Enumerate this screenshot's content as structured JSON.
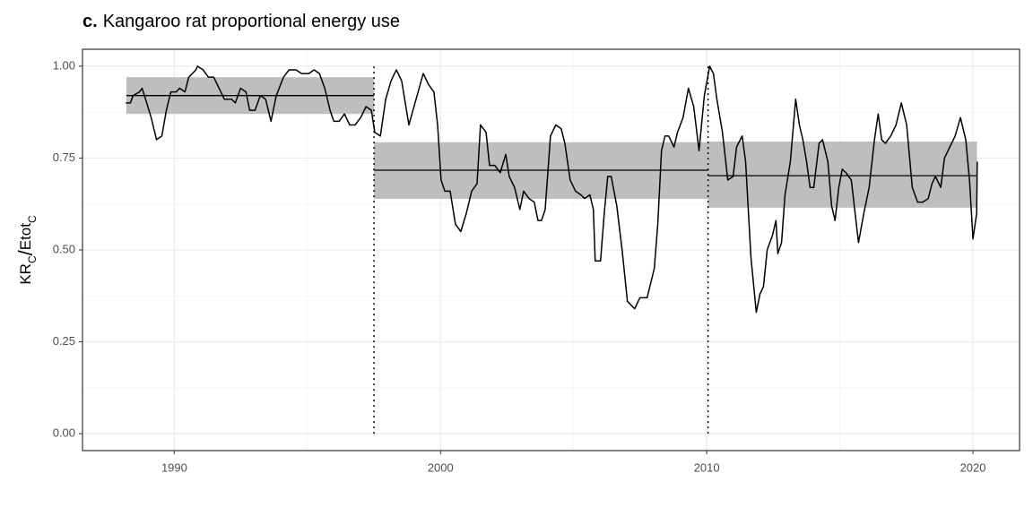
{
  "chart_data": {
    "type": "line",
    "title_label": "c.",
    "title": "Kangaroo rat proportional energy use",
    "y_label": {
      "text1": "KR",
      "sub1": "C",
      "slash": "/",
      "text2": "Etot",
      "sub2": "C"
    },
    "xlim": [
      1986.55,
      2021.75
    ],
    "ylim": [
      -0.046,
      1.046
    ],
    "xticks": [
      1990,
      2000,
      2010,
      2020
    ],
    "minor_xticks": [
      1995,
      2005,
      2015
    ],
    "yticks": [
      {
        "value": 0,
        "label": "0.00"
      },
      {
        "value": 0.25,
        "label": "0.25"
      },
      {
        "value": 0.5,
        "label": "0.50"
      },
      {
        "value": 0.75,
        "label": "0.75"
      },
      {
        "value": 1,
        "label": "1.00"
      }
    ],
    "minor_yticks": [
      0.125,
      0.375,
      0.625,
      0.875
    ],
    "grid": true,
    "band_color": "#bebebe",
    "changepoints": [
      1997.5,
      2010.05
    ],
    "segments": [
      {
        "start": 1988.2,
        "end": 1997.5,
        "mean": 0.92,
        "lower": 0.87,
        "upper": 0.97
      },
      {
        "start": 1997.5,
        "end": 2010.05,
        "mean": 0.717,
        "lower": 0.639,
        "upper": 0.793
      },
      {
        "start": 2010.05,
        "end": 2020.15,
        "mean": 0.702,
        "lower": 0.615,
        "upper": 0.795
      }
    ],
    "series": [
      {
        "color": "#000000",
        "x": [
          1988.18,
          1988.35,
          1988.45,
          1988.69,
          1988.79,
          1988.92,
          1989.13,
          1989.33,
          1989.53,
          1989.7,
          1989.87,
          1990.07,
          1990.2,
          1990.4,
          1990.54,
          1990.81,
          1990.87,
          1991.08,
          1991.28,
          1991.48,
          1991.68,
          1991.88,
          1992.15,
          1992.29,
          1992.49,
          1992.69,
          1992.83,
          1993.03,
          1993.23,
          1993.43,
          1993.63,
          1993.83,
          1994.1,
          1994.31,
          1994.57,
          1994.78,
          1995.05,
          1995.25,
          1995.45,
          1995.65,
          1995.85,
          1995.99,
          1996.19,
          1996.39,
          1996.59,
          1996.79,
          1997.0,
          1997.2,
          1997.4,
          1997.53,
          1997.74,
          1997.94,
          1998.14,
          1998.34,
          1998.54,
          1998.81,
          1999.08,
          1999.35,
          1999.55,
          1999.75,
          1999.89,
          2000.02,
          2000.16,
          2000.36,
          2000.56,
          2000.76,
          2000.97,
          2001.17,
          2001.37,
          2001.5,
          2001.71,
          2001.84,
          2002.04,
          2002.24,
          2002.45,
          2002.58,
          2002.78,
          2002.98,
          2003.12,
          2003.32,
          2003.52,
          2003.66,
          2003.79,
          2003.93,
          2004.13,
          2004.33,
          2004.53,
          2004.67,
          2004.87,
          2005.07,
          2005.27,
          2005.41,
          2005.61,
          2005.74,
          2005.81,
          2006.01,
          2006.15,
          2006.28,
          2006.41,
          2006.62,
          2006.82,
          2007.02,
          2007.29,
          2007.49,
          2007.76,
          2008.03,
          2008.16,
          2008.3,
          2008.43,
          2008.57,
          2008.77,
          2008.9,
          2009.11,
          2009.31,
          2009.51,
          2009.71,
          2009.91,
          2010.11,
          2010.25,
          2010.38,
          2010.59,
          2010.79,
          2010.99,
          2011.12,
          2011.33,
          2011.46,
          2011.66,
          2011.86,
          2012.0,
          2012.13,
          2012.27,
          2012.47,
          2012.6,
          2012.67,
          2012.81,
          2012.94,
          2013.14,
          2013.34,
          2013.48,
          2013.61,
          2013.75,
          2013.88,
          2014.02,
          2014.22,
          2014.35,
          2014.55,
          2014.69,
          2014.82,
          2014.96,
          2015.09,
          2015.23,
          2015.43,
          2015.7,
          2015.9,
          2016.1,
          2016.3,
          2016.44,
          2016.57,
          2016.71,
          2016.91,
          2017.11,
          2017.31,
          2017.51,
          2017.72,
          2017.92,
          2018.12,
          2018.32,
          2018.46,
          2018.59,
          2018.79,
          2018.93,
          2019.13,
          2019.33,
          2019.53,
          2019.73,
          2019.87,
          2020.0,
          2020.14,
          2020.16
        ],
        "values": [
          0.9,
          0.9,
          0.92,
          0.93,
          0.94,
          0.91,
          0.86,
          0.8,
          0.81,
          0.88,
          0.93,
          0.93,
          0.94,
          0.93,
          0.97,
          0.99,
          1.0,
          0.99,
          0.97,
          0.97,
          0.94,
          0.91,
          0.91,
          0.9,
          0.94,
          0.93,
          0.88,
          0.88,
          0.92,
          0.91,
          0.85,
          0.92,
          0.97,
          0.99,
          0.99,
          0.98,
          0.98,
          0.99,
          0.98,
          0.94,
          0.88,
          0.85,
          0.85,
          0.87,
          0.84,
          0.84,
          0.86,
          0.89,
          0.88,
          0.82,
          0.81,
          0.91,
          0.96,
          0.99,
          0.96,
          0.84,
          0.91,
          0.98,
          0.95,
          0.93,
          0.84,
          0.69,
          0.66,
          0.66,
          0.57,
          0.55,
          0.6,
          0.66,
          0.68,
          0.84,
          0.82,
          0.73,
          0.73,
          0.71,
          0.76,
          0.7,
          0.67,
          0.61,
          0.66,
          0.64,
          0.63,
          0.58,
          0.58,
          0.61,
          0.81,
          0.84,
          0.83,
          0.79,
          0.69,
          0.66,
          0.65,
          0.64,
          0.65,
          0.61,
          0.47,
          0.47,
          0.6,
          0.7,
          0.7,
          0.62,
          0.5,
          0.36,
          0.34,
          0.37,
          0.37,
          0.45,
          0.57,
          0.77,
          0.81,
          0.81,
          0.78,
          0.82,
          0.86,
          0.94,
          0.89,
          0.77,
          0.92,
          1.0,
          0.98,
          0.91,
          0.82,
          0.69,
          0.7,
          0.78,
          0.81,
          0.74,
          0.48,
          0.33,
          0.38,
          0.4,
          0.5,
          0.54,
          0.58,
          0.49,
          0.52,
          0.65,
          0.74,
          0.91,
          0.84,
          0.8,
          0.74,
          0.67,
          0.67,
          0.79,
          0.8,
          0.74,
          0.62,
          0.58,
          0.67,
          0.72,
          0.71,
          0.69,
          0.52,
          0.6,
          0.67,
          0.8,
          0.87,
          0.8,
          0.79,
          0.81,
          0.84,
          0.9,
          0.84,
          0.67,
          0.63,
          0.63,
          0.64,
          0.68,
          0.7,
          0.67,
          0.75,
          0.78,
          0.81,
          0.86,
          0.8,
          0.69,
          0.53,
          0.6,
          0.74
        ]
      }
    ]
  }
}
